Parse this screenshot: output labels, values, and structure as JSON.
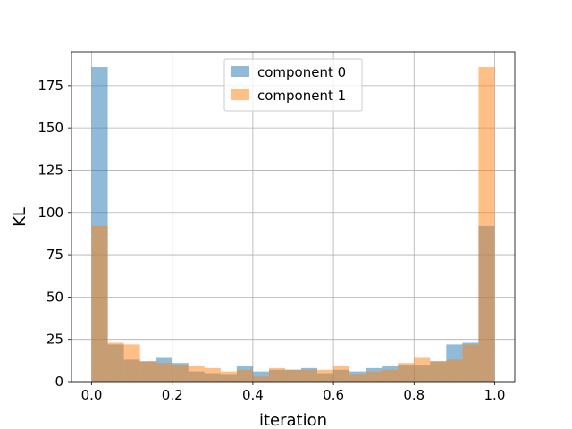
{
  "chart_data": {
    "type": "bar",
    "subtype": "overlaid-histogram",
    "xlabel": "iteration",
    "ylabel": "KL",
    "xlim": [
      -0.05,
      1.05
    ],
    "ylim": [
      0,
      195
    ],
    "xticks": [
      0.0,
      0.2,
      0.4,
      0.6,
      0.8,
      1.0
    ],
    "xtick_labels": [
      "0.0",
      "0.2",
      "0.4",
      "0.6",
      "0.8",
      "1.0"
    ],
    "yticks": [
      0,
      25,
      50,
      75,
      100,
      125,
      150,
      175
    ],
    "ytick_labels": [
      "0",
      "25",
      "50",
      "75",
      "100",
      "125",
      "150",
      "175"
    ],
    "grid": true,
    "legend_position": "top-center",
    "bin_edges": [
      0.0,
      0.04,
      0.08,
      0.12,
      0.16,
      0.2,
      0.24,
      0.28,
      0.32,
      0.36,
      0.4,
      0.44,
      0.48,
      0.52,
      0.56,
      0.6,
      0.64,
      0.68,
      0.72,
      0.76,
      0.8,
      0.84,
      0.88,
      0.92,
      0.96,
      1.0
    ],
    "series": [
      {
        "name": "component 0",
        "color": "#1f77b4",
        "alpha": 0.5,
        "values": [
          186,
          22,
          13,
          12,
          14,
          11,
          6,
          5,
          4,
          9,
          6,
          7,
          7,
          8,
          5,
          7,
          6,
          8,
          9,
          10,
          10,
          12,
          22,
          23,
          92
        ]
      },
      {
        "name": "component 1",
        "color": "#ff7f0e",
        "alpha": 0.5,
        "values": [
          92,
          23,
          22,
          12,
          11,
          10,
          9,
          8,
          6,
          7,
          3,
          8,
          7,
          7,
          7,
          9,
          4,
          6,
          7,
          11,
          14,
          12,
          13,
          22,
          186
        ]
      }
    ]
  }
}
